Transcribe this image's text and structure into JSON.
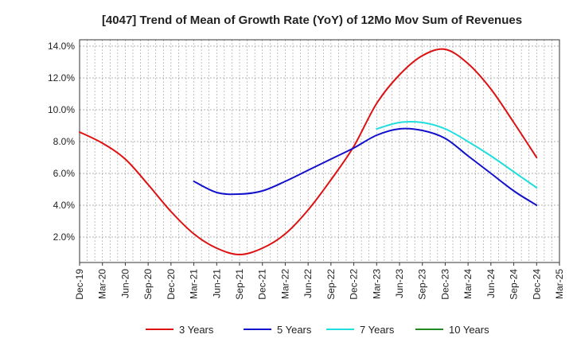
{
  "chart_data": {
    "type": "line",
    "title": "[4047]  Trend of Mean of Growth Rate (YoY) of 12Mo Mov Sum of Revenues",
    "xlabel": "",
    "ylabel": "",
    "ylim": [
      0.4,
      14.4
    ],
    "yticks": [
      "2.0%",
      "4.0%",
      "6.0%",
      "8.0%",
      "10.0%",
      "12.0%",
      "14.0%"
    ],
    "ytick_values": [
      2,
      4,
      6,
      8,
      10,
      12,
      14
    ],
    "x_tick_labels": [
      "Dec-19",
      "Mar-20",
      "Jun-20",
      "Sep-20",
      "Dec-20",
      "Mar-21",
      "Jun-21",
      "Sep-21",
      "Dec-21",
      "Mar-22",
      "Jun-22",
      "Sep-22",
      "Dec-22",
      "Mar-23",
      "Jun-23",
      "Sep-23",
      "Dec-23",
      "Mar-24",
      "Jun-24",
      "Sep-24",
      "Dec-24",
      "Mar-25"
    ],
    "grid": true,
    "legend_position": "bottom",
    "series": [
      {
        "name": "3 Years",
        "color": "#dd1111",
        "start_index": 0,
        "values": [
          8.6,
          7.9,
          6.9,
          5.3,
          3.6,
          2.2,
          1.3,
          0.9,
          1.3,
          2.2,
          3.7,
          5.6,
          7.7,
          10.4,
          12.2,
          13.4,
          13.8,
          12.9,
          11.3,
          9.2,
          7.0
        ]
      },
      {
        "name": "5 Years",
        "color": "#1111cc",
        "start_index": 5,
        "values": [
          5.5,
          4.8,
          4.7,
          4.9,
          5.5,
          6.2,
          6.9,
          7.6,
          8.4,
          8.8,
          8.7,
          8.2,
          7.1,
          6.0,
          4.9,
          4.0
        ]
      },
      {
        "name": "7 Years",
        "color": "#22dddd",
        "start_index": 13,
        "values": [
          8.8,
          9.2,
          9.2,
          8.8,
          8.0,
          7.1,
          6.1,
          5.1
        ]
      },
      {
        "name": "10 Years",
        "color": "#228822",
        "start_index": 0,
        "values": []
      }
    ]
  }
}
